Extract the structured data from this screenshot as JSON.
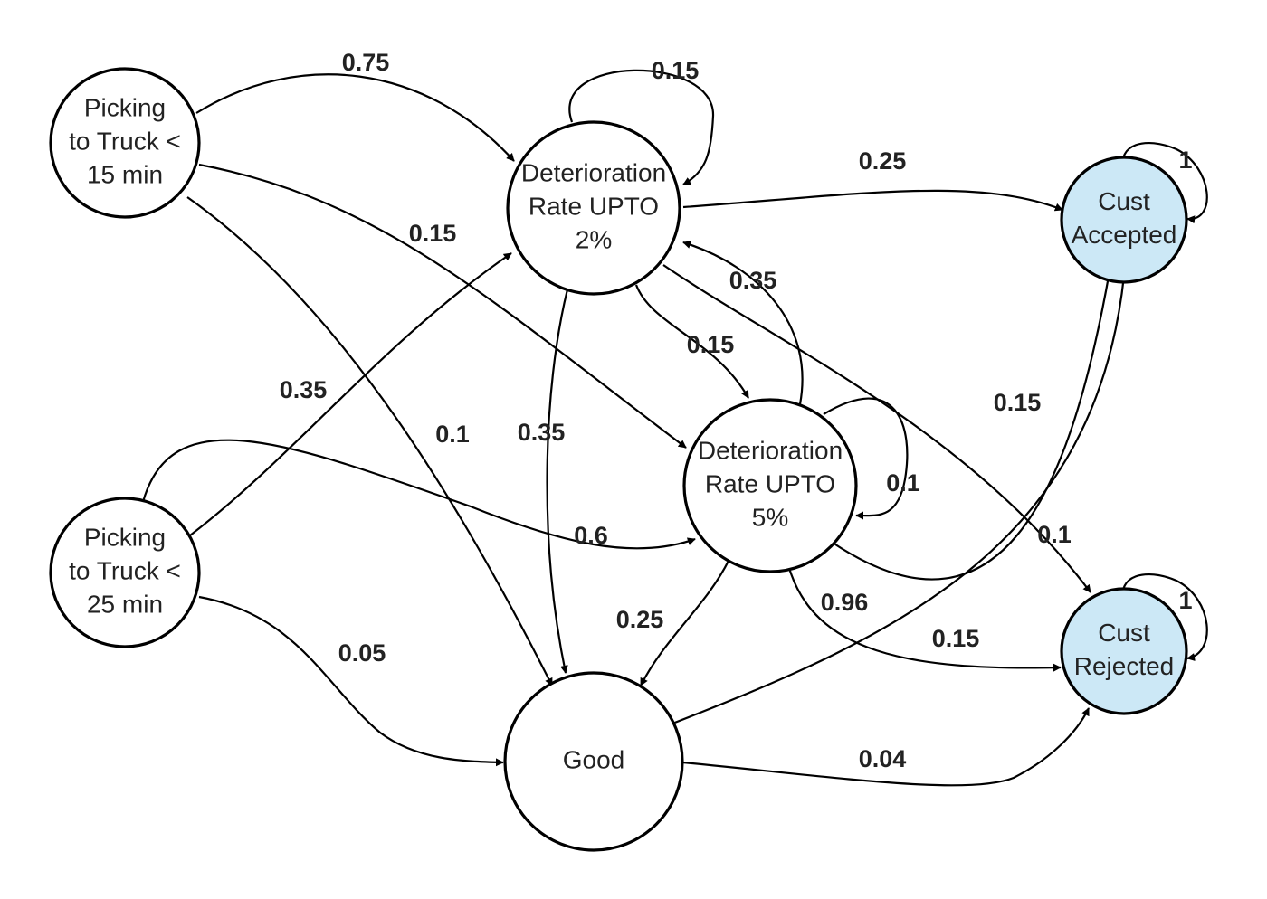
{
  "diagram": {
    "nodes": [
      {
        "id": "pick15",
        "lines": [
          "Picking",
          "to Truck <",
          "15 min"
        ],
        "fill": "#ffffff"
      },
      {
        "id": "pick25",
        "lines": [
          "Picking",
          "to Truck <",
          "25 min"
        ],
        "fill": "#ffffff"
      },
      {
        "id": "det2",
        "lines": [
          "Deterioration",
          "Rate UPTO",
          "2%"
        ],
        "fill": "#ffffff"
      },
      {
        "id": "det5",
        "lines": [
          "Deterioration",
          "Rate UPTO",
          "5%"
        ],
        "fill": "#ffffff"
      },
      {
        "id": "good",
        "lines": [
          "Good"
        ],
        "fill": "#ffffff"
      },
      {
        "id": "accepted",
        "lines": [
          "Cust",
          "Accepted"
        ],
        "fill": "#cce8f6"
      },
      {
        "id": "rejected",
        "lines": [
          "Cust",
          "Rejected"
        ],
        "fill": "#cce8f6"
      }
    ],
    "edges": [
      {
        "id": "p15-d2",
        "from": "pick15",
        "to": "det2",
        "label": "0.75"
      },
      {
        "id": "p15-d5",
        "from": "pick15",
        "to": "det5",
        "label": "0.15"
      },
      {
        "id": "p15-good",
        "from": "pick15",
        "to": "good",
        "label": "0.1"
      },
      {
        "id": "d2-self",
        "from": "det2",
        "to": "det2",
        "label": "0.15"
      },
      {
        "id": "d2-acc",
        "from": "det2",
        "to": "accepted",
        "label": "0.25"
      },
      {
        "id": "d2-d5",
        "from": "det2",
        "to": "det5",
        "label": "0.15"
      },
      {
        "id": "d2-good",
        "from": "det2",
        "to": "good",
        "label": "0.35"
      },
      {
        "id": "d2-rej",
        "from": "det2",
        "to": "rejected",
        "label": "0.1"
      },
      {
        "id": "d5-d2",
        "from": "det5",
        "to": "det2",
        "label": "0.35"
      },
      {
        "id": "d5-self",
        "from": "det5",
        "to": "det5",
        "label": "0.1"
      },
      {
        "id": "d5-acc",
        "from": "det5",
        "to": "accepted",
        "label": "0.15"
      },
      {
        "id": "d5-good",
        "from": "det5",
        "to": "good",
        "label": "0.25"
      },
      {
        "id": "d5-rej",
        "from": "det5",
        "to": "rejected",
        "label": "0.15"
      },
      {
        "id": "p25-d2",
        "from": "pick25",
        "to": "det2",
        "label": "0.35"
      },
      {
        "id": "p25-d5",
        "from": "pick25",
        "to": "det5",
        "label": "0.6"
      },
      {
        "id": "p25-good",
        "from": "pick25",
        "to": "good",
        "label": "0.05"
      },
      {
        "id": "good-acc",
        "from": "good",
        "to": "accepted",
        "label": "0.96"
      },
      {
        "id": "good-rej",
        "from": "good",
        "to": "rejected",
        "label": "0.04"
      },
      {
        "id": "acc-self",
        "from": "accepted",
        "to": "accepted",
        "label": "1"
      },
      {
        "id": "rej-self",
        "from": "rejected",
        "to": "rejected",
        "label": "1"
      }
    ]
  }
}
